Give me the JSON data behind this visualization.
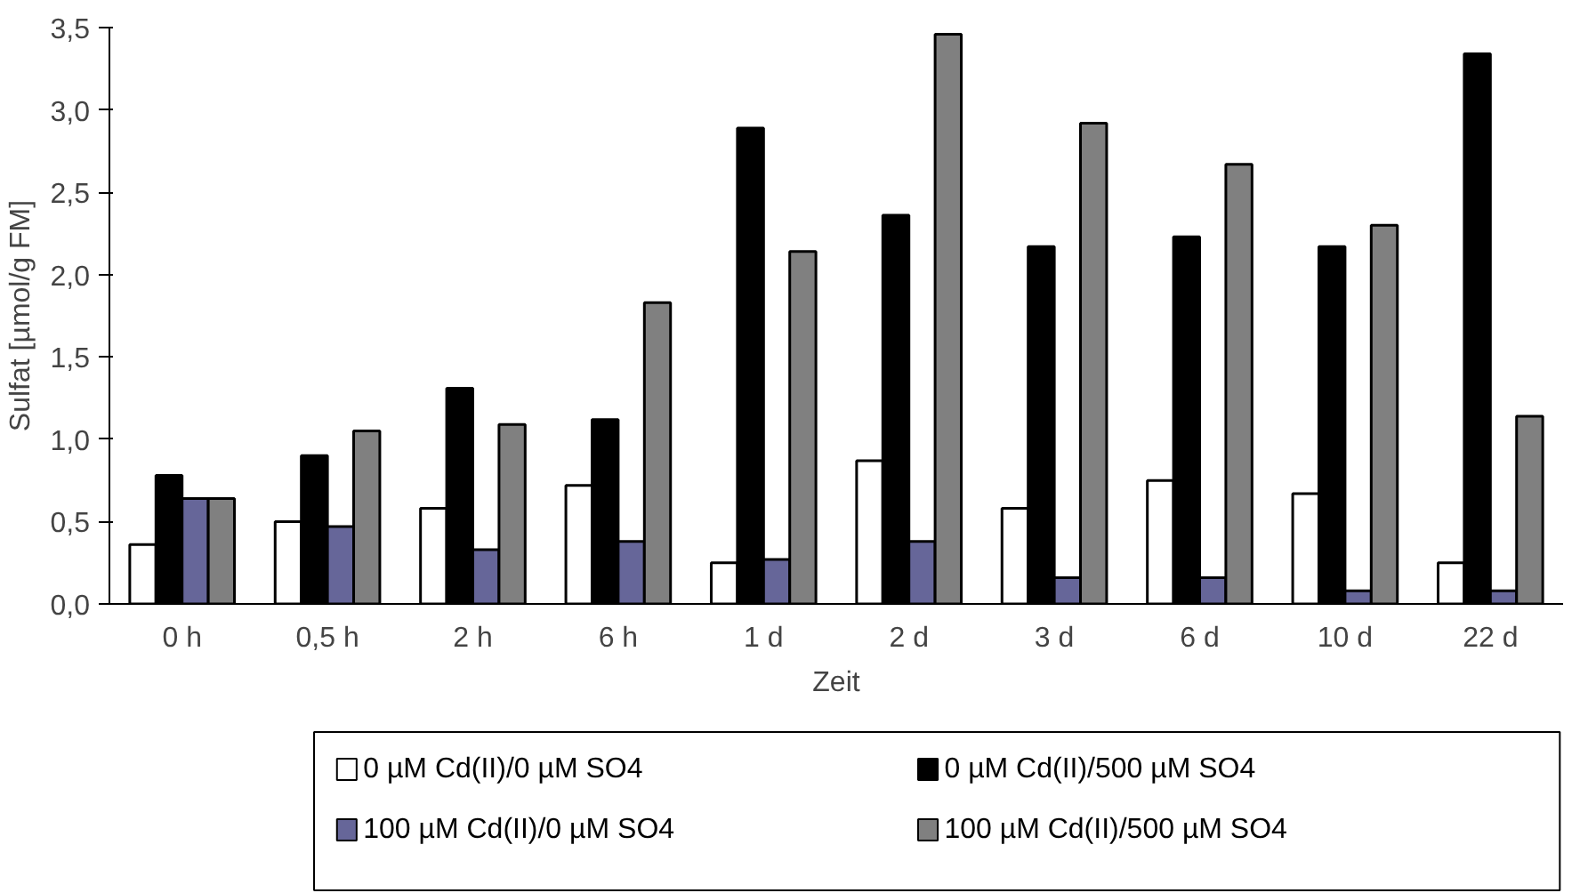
{
  "chart_data": {
    "type": "bar",
    "xlabel": "Zeit",
    "ylabel": "Sulfat [µmol/g FM]",
    "categories": [
      "0 h",
      "0,5 h",
      "2 h",
      "6 h",
      "1 d",
      "2 d",
      "3 d",
      "6 d",
      "10 d",
      "22 d"
    ],
    "series": [
      {
        "name": "0 µM Cd(II)/0 µM SO4",
        "color": "#ffffff",
        "values": [
          0.36,
          0.5,
          0.58,
          0.72,
          0.25,
          0.87,
          0.58,
          0.75,
          0.67,
          0.25
        ]
      },
      {
        "name": "0 µM Cd(II)/500 µM SO4",
        "color": "#000000",
        "values": [
          0.78,
          0.9,
          1.31,
          1.12,
          2.89,
          2.36,
          2.17,
          2.23,
          2.17,
          3.34
        ]
      },
      {
        "name": "100 µM Cd(II)/0 µM SO4",
        "color": "#666699",
        "values": [
          0.64,
          0.47,
          0.33,
          0.38,
          0.27,
          0.38,
          0.16,
          0.16,
          0.08,
          0.08
        ]
      },
      {
        "name": "100 µM Cd(II)/500 µM SO4",
        "color": "#808080",
        "values": [
          0.64,
          1.05,
          1.09,
          1.83,
          2.14,
          3.46,
          2.92,
          2.67,
          2.3,
          1.14
        ]
      }
    ],
    "ylim": [
      0,
      3.5
    ],
    "yticks": [
      {
        "value": 0,
        "label": "0,0"
      },
      {
        "value": 0.5,
        "label": "0,5"
      },
      {
        "value": 1,
        "label": "1,0"
      },
      {
        "value": 1.5,
        "label": "1,5"
      },
      {
        "value": 2,
        "label": "2,0"
      },
      {
        "value": 2.5,
        "label": "2,5"
      },
      {
        "value": 3,
        "label": "3,0"
      },
      {
        "value": 3.5,
        "label": "3,5"
      }
    ],
    "grid": false,
    "legend": "bottom"
  }
}
